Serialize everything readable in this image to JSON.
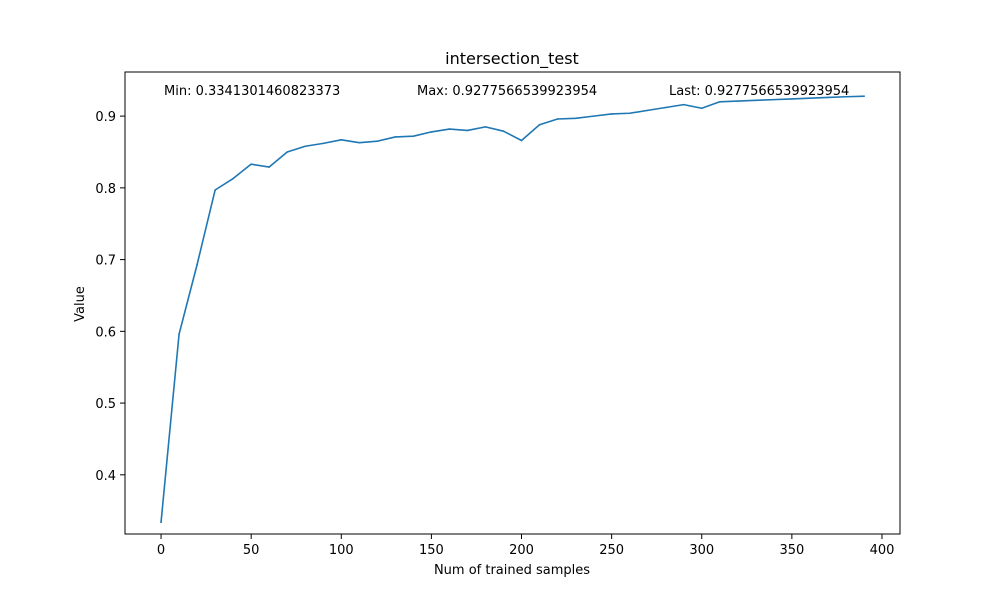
{
  "chart_data": {
    "type": "line",
    "title": "intersection_test",
    "xlabel": "Num of trained samples",
    "ylabel": "Value",
    "xlim": [
      -20,
      410
    ],
    "ylim": [
      0.3175,
      0.9615
    ],
    "xticks": [
      0,
      50,
      100,
      150,
      200,
      250,
      300,
      350,
      400
    ],
    "yticks": [
      0.4,
      0.5,
      0.6,
      0.7,
      0.8,
      0.9
    ],
    "grid": false,
    "series": [
      {
        "color": "#1f77b4",
        "x": [
          0,
          10,
          20,
          30,
          40,
          50,
          60,
          70,
          80,
          90,
          100,
          110,
          120,
          130,
          140,
          150,
          160,
          170,
          180,
          190,
          200,
          210,
          220,
          230,
          240,
          250,
          260,
          270,
          280,
          290,
          300,
          310,
          320,
          330,
          340,
          350,
          360,
          370,
          380,
          390
        ],
        "y": [
          0.3341,
          0.596,
          0.693,
          0.797,
          0.813,
          0.833,
          0.829,
          0.85,
          0.858,
          0.862,
          0.867,
          0.863,
          0.865,
          0.871,
          0.872,
          0.878,
          0.882,
          0.88,
          0.885,
          0.879,
          0.866,
          0.888,
          0.896,
          0.897,
          0.9,
          0.903,
          0.904,
          0.908,
          0.912,
          0.916,
          0.911,
          0.92,
          0.921,
          0.922,
          0.923,
          0.924,
          0.925,
          0.926,
          0.927,
          0.9278
        ]
      }
    ],
    "annotations": {
      "min": "Min: 0.3341301460823373",
      "max": "Max: 0.9277566539923954",
      "last": "Last: 0.9277566539923954"
    }
  }
}
